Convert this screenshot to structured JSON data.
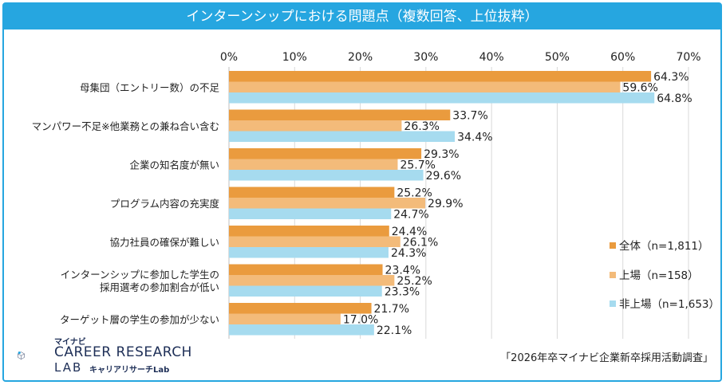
{
  "title": "インターンシップにおける問題点（複数回答、上位抜粋）",
  "source": "「2026年卒マイナビ企業新卒採用活動調査」",
  "logo": {
    "small": "マイナビ",
    "main": "CAREER RESEARCH",
    "lab": "LAB",
    "sub": "キャリアリサーチLab"
  },
  "colors": {
    "title_bg": "#26a6e0",
    "series_all": "#ea9b3e",
    "series_listed": "#f3bb7a",
    "series_unlisted": "#a6dbef"
  },
  "chart_data": {
    "type": "bar",
    "orientation": "horizontal",
    "categories": [
      [
        "母集団（エントリー数）の不足"
      ],
      [
        "マンパワー不足※他業務との兼ね合い含む"
      ],
      [
        "企業の知名度が無い"
      ],
      [
        "プログラム内容の充実度"
      ],
      [
        "協力社員の確保が難しい"
      ],
      [
        "インターンシップに参加した学生の",
        "採用選考の参加割合が低い"
      ],
      [
        "ターゲット層の学生の参加が少ない"
      ]
    ],
    "series": [
      {
        "name": "全体（n=1,811）",
        "color": "#ea9b3e",
        "values": [
          64.3,
          33.7,
          29.3,
          25.2,
          24.4,
          23.4,
          21.7
        ]
      },
      {
        "name": "上場（n=158）",
        "color": "#f3bb7a",
        "values": [
          59.6,
          26.3,
          25.7,
          29.9,
          26.1,
          25.2,
          17.0
        ]
      },
      {
        "name": "非上場（n=1,653）",
        "color": "#a6dbef",
        "values": [
          64.8,
          34.4,
          29.6,
          24.7,
          24.3,
          23.3,
          22.1
        ]
      }
    ],
    "xlim": [
      0,
      70
    ],
    "xticks": [
      "0%",
      "10%",
      "20%",
      "30%",
      "40%",
      "50%",
      "60%",
      "70%"
    ],
    "grid": true,
    "legend_position": "right"
  }
}
